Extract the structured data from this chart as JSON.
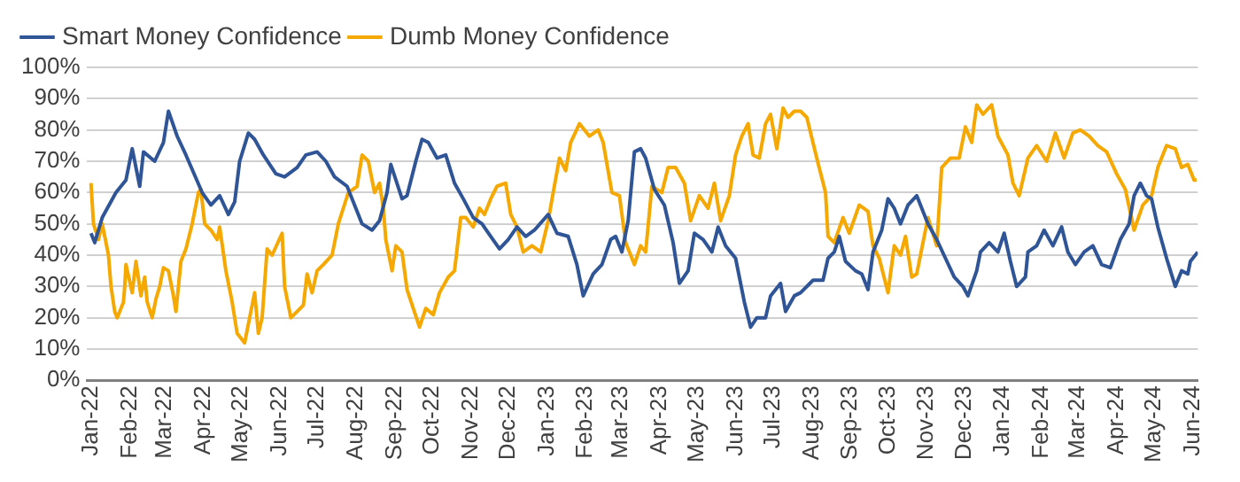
{
  "chart_data": {
    "type": "line",
    "xlim": [
      "2021-12-29",
      "2024-06-05"
    ],
    "ylim": [
      0,
      100
    ],
    "yticks": [
      {
        "value": 0,
        "label": "0%"
      },
      {
        "value": 10,
        "label": "10%"
      },
      {
        "value": 20,
        "label": "20%"
      },
      {
        "value": 30,
        "label": "30%"
      },
      {
        "value": 40,
        "label": "40%"
      },
      {
        "value": 50,
        "label": "50%"
      },
      {
        "value": 60,
        "label": "60%"
      },
      {
        "value": 70,
        "label": "70%"
      },
      {
        "value": 80,
        "label": "80%"
      },
      {
        "value": 90,
        "label": "90%"
      },
      {
        "value": 100,
        "label": "100%"
      }
    ],
    "xticks": [
      {
        "value": "2022-01",
        "label": "Jan-22"
      },
      {
        "value": "2022-02",
        "label": "Feb-22"
      },
      {
        "value": "2022-03",
        "label": "Mar-22"
      },
      {
        "value": "2022-04",
        "label": "Apr-22"
      },
      {
        "value": "2022-05",
        "label": "May-22"
      },
      {
        "value": "2022-06",
        "label": "Jun-22"
      },
      {
        "value": "2022-07",
        "label": "Jul-22"
      },
      {
        "value": "2022-08",
        "label": "Aug-22"
      },
      {
        "value": "2022-09",
        "label": "Sep-22"
      },
      {
        "value": "2022-10",
        "label": "Oct-22"
      },
      {
        "value": "2022-11",
        "label": "Nov-22"
      },
      {
        "value": "2022-12",
        "label": "Dec-22"
      },
      {
        "value": "2023-01",
        "label": "Jan-23"
      },
      {
        "value": "2023-02",
        "label": "Feb-23"
      },
      {
        "value": "2023-03",
        "label": "Mar-23"
      },
      {
        "value": "2023-04",
        "label": "Apr-23"
      },
      {
        "value": "2023-05",
        "label": "May-23"
      },
      {
        "value": "2023-06",
        "label": "Jun-23"
      },
      {
        "value": "2023-07",
        "label": "Jul-23"
      },
      {
        "value": "2023-08",
        "label": "Aug-23"
      },
      {
        "value": "2023-09",
        "label": "Sep-23"
      },
      {
        "value": "2023-10",
        "label": "Oct-23"
      },
      {
        "value": "2023-11",
        "label": "Nov-23"
      },
      {
        "value": "2023-12",
        "label": "Dec-23"
      },
      {
        "value": "2024-01",
        "label": "Jan-24"
      },
      {
        "value": "2024-02",
        "label": "Feb-24"
      },
      {
        "value": "2024-03",
        "label": "Mar-24"
      },
      {
        "value": "2024-04",
        "label": "Apr-24"
      },
      {
        "value": "2024-05",
        "label": "May-24"
      },
      {
        "value": "2024-06",
        "label": "Jun-24"
      }
    ],
    "grid": "y",
    "legend": "top left",
    "marker": "none",
    "line_style": "solid",
    "series": [
      {
        "name": "Smart Money Confidence",
        "color": "#2f5597",
        "x": [
          "2022-01-01",
          "2022-01-04",
          "2022-01-10",
          "2022-01-21",
          "2022-01-29",
          "2022-02-03",
          "2022-02-09",
          "2022-02-12",
          "2022-02-21",
          "2022-02-28",
          "2022-03-04",
          "2022-03-11",
          "2022-03-18",
          "2022-03-31",
          "2022-04-07",
          "2022-04-14",
          "2022-04-21",
          "2022-04-26",
          "2022-04-30",
          "2022-05-07",
          "2022-05-12",
          "2022-05-19",
          "2022-05-29",
          "2022-06-05",
          "2022-06-15",
          "2022-06-22",
          "2022-07-01",
          "2022-07-08",
          "2022-07-15",
          "2022-07-25",
          "2022-08-06",
          "2022-08-14",
          "2022-08-20",
          "2022-08-26",
          "2022-08-29",
          "2022-09-07",
          "2022-09-11",
          "2022-09-18",
          "2022-09-23",
          "2022-09-28",
          "2022-10-05",
          "2022-10-12",
          "2022-10-19",
          "2022-10-26",
          "2022-11-03",
          "2022-11-10",
          "2022-11-17",
          "2022-11-24",
          "2022-12-01",
          "2022-12-08",
          "2022-12-15",
          "2022-12-22",
          "2023-01-02",
          "2023-01-09",
          "2023-01-18",
          "2023-01-25",
          "2023-01-30",
          "2023-02-07",
          "2023-02-14",
          "2023-02-21",
          "2023-02-25",
          "2023-03-02",
          "2023-03-07",
          "2023-03-12",
          "2023-03-17",
          "2023-03-21",
          "2023-03-28",
          "2023-04-05",
          "2023-04-12",
          "2023-04-17",
          "2023-04-24",
          "2023-04-29",
          "2023-05-06",
          "2023-05-13",
          "2023-05-18",
          "2023-05-24",
          "2023-06-01",
          "2023-06-08",
          "2023-06-13",
          "2023-06-18",
          "2023-06-25",
          "2023-06-29",
          "2023-07-07",
          "2023-07-11",
          "2023-07-18",
          "2023-07-23",
          "2023-08-02",
          "2023-08-10",
          "2023-08-14",
          "2023-08-19",
          "2023-08-23",
          "2023-08-28",
          "2023-09-05",
          "2023-09-10",
          "2023-09-15",
          "2023-09-19",
          "2023-09-26",
          "2023-10-01",
          "2023-10-06",
          "2023-10-11",
          "2023-10-17",
          "2023-10-24",
          "2023-11-02",
          "2023-11-09",
          "2023-11-16",
          "2023-11-23",
          "2023-11-30",
          "2023-12-04",
          "2023-12-11",
          "2023-12-14",
          "2023-12-21",
          "2023-12-28",
          "2024-01-02",
          "2024-01-07",
          "2024-01-12",
          "2024-01-19",
          "2024-01-21",
          "2024-01-28",
          "2024-02-03",
          "2024-02-10",
          "2024-02-17",
          "2024-02-22",
          "2024-02-28",
          "2024-03-06",
          "2024-03-13",
          "2024-03-20",
          "2024-03-27",
          "2024-04-04",
          "2024-04-11",
          "2024-04-15",
          "2024-04-20",
          "2024-04-25",
          "2024-04-29",
          "2024-05-04",
          "2024-05-11",
          "2024-05-18",
          "2024-05-23",
          "2024-05-28",
          "2024-05-30",
          "2024-06-05"
        ],
        "values": [
          47,
          44,
          52,
          60,
          64,
          74,
          62,
          73,
          70,
          76,
          86,
          78,
          72,
          60,
          56,
          59,
          53,
          57,
          70,
          79,
          77,
          72,
          66,
          65,
          68,
          72,
          73,
          70,
          65,
          62,
          50,
          48,
          51,
          60,
          69,
          58,
          59,
          70,
          77,
          76,
          71,
          72,
          63,
          58,
          52,
          50,
          46,
          42,
          45,
          49,
          46,
          48,
          53,
          47,
          46,
          37,
          27,
          34,
          37,
          45,
          46,
          41,
          51,
          73,
          74,
          71,
          61,
          56,
          44,
          31,
          35,
          47,
          45,
          41,
          49,
          43,
          39,
          25,
          17,
          20,
          20,
          27,
          31,
          22,
          27,
          28,
          32,
          32,
          39,
          41,
          46,
          38,
          35,
          34,
          29,
          41,
          48,
          58,
          55,
          50,
          56,
          59,
          50,
          45,
          39,
          33,
          30,
          27,
          35,
          41,
          44,
          41,
          47,
          38,
          30,
          33,
          41,
          43,
          48,
          43,
          49,
          41,
          37,
          41,
          43,
          37,
          36,
          45,
          50,
          59,
          63,
          59,
          58,
          49,
          39,
          30,
          35,
          34,
          38,
          41
        ]
      },
      {
        "name": "Dumb Money Confidence",
        "color": "#f5a800",
        "x": [
          "2022-01-01",
          "2022-01-03",
          "2022-01-07",
          "2022-01-10",
          "2022-01-15",
          "2022-01-17",
          "2022-01-20",
          "2022-01-22",
          "2022-01-27",
          "2022-01-28",
          "2022-01-29",
          "2022-02-03",
          "2022-02-06",
          "2022-02-10",
          "2022-02-13",
          "2022-02-15",
          "2022-02-19",
          "2022-02-22",
          "2022-02-25",
          "2022-02-28",
          "2022-03-04",
          "2022-03-08",
          "2022-03-10",
          "2022-03-14",
          "2022-03-18",
          "2022-03-23",
          "2022-03-28",
          "2022-03-30",
          "2022-04-02",
          "2022-04-07",
          "2022-04-12",
          "2022-04-14",
          "2022-04-19",
          "2022-04-24",
          "2022-04-28",
          "2022-05-04",
          "2022-05-08",
          "2022-05-12",
          "2022-05-15",
          "2022-05-18",
          "2022-05-22",
          "2022-05-26",
          "2022-06-03",
          "2022-06-05",
          "2022-06-10",
          "2022-06-15",
          "2022-06-20",
          "2022-06-23",
          "2022-06-27",
          "2022-07-01",
          "2022-07-06",
          "2022-07-13",
          "2022-07-18",
          "2022-07-22",
          "2022-07-26",
          "2022-08-02",
          "2022-08-06",
          "2022-08-11",
          "2022-08-16",
          "2022-08-20",
          "2022-08-23",
          "2022-08-25",
          "2022-08-30",
          "2022-09-02",
          "2022-09-07",
          "2022-09-11",
          "2022-09-16",
          "2022-09-21",
          "2022-09-26",
          "2022-10-02",
          "2022-10-07",
          "2022-10-14",
          "2022-10-19",
          "2022-10-24",
          "2022-10-28",
          "2022-11-03",
          "2022-11-08",
          "2022-11-12",
          "2022-11-17",
          "2022-11-22",
          "2022-11-29",
          "2022-12-03",
          "2022-12-08",
          "2022-12-13",
          "2022-12-20",
          "2022-12-27",
          "2023-01-02",
          "2023-01-06",
          "2023-01-11",
          "2023-01-16",
          "2023-01-20",
          "2023-01-27",
          "2023-02-04",
          "2023-02-11",
          "2023-02-15",
          "2023-02-22",
          "2023-02-28",
          "2023-03-05",
          "2023-03-12",
          "2023-03-17",
          "2023-03-21",
          "2023-03-26",
          "2023-04-03",
          "2023-04-08",
          "2023-04-14",
          "2023-04-21",
          "2023-04-26",
          "2023-05-03",
          "2023-05-10",
          "2023-05-15",
          "2023-05-20",
          "2023-05-27",
          "2023-06-01",
          "2023-06-06",
          "2023-06-11",
          "2023-06-15",
          "2023-06-20",
          "2023-06-25",
          "2023-06-29",
          "2023-07-04",
          "2023-07-09",
          "2023-07-13",
          "2023-07-18",
          "2023-07-23",
          "2023-07-28",
          "2023-08-05",
          "2023-08-12",
          "2023-08-14",
          "2023-08-19",
          "2023-08-26",
          "2023-08-31",
          "2023-09-08",
          "2023-09-15",
          "2023-09-19",
          "2023-09-24",
          "2023-10-01",
          "2023-10-06",
          "2023-10-11",
          "2023-10-15",
          "2023-10-20",
          "2023-10-24",
          "2023-11-02",
          "2023-11-09",
          "2023-11-13",
          "2023-11-20",
          "2023-11-27",
          "2023-12-02",
          "2023-12-07",
          "2023-12-11",
          "2023-12-16",
          "2023-12-23",
          "2023-12-28",
          "2024-01-05",
          "2024-01-09",
          "2024-01-14",
          "2024-01-21",
          "2024-01-28",
          "2024-02-05",
          "2024-02-12",
          "2024-02-19",
          "2024-02-26",
          "2024-03-03",
          "2024-03-10",
          "2024-03-17",
          "2024-03-24",
          "2024-04-01",
          "2024-04-08",
          "2024-04-15",
          "2024-04-22",
          "2024-04-29",
          "2024-05-04",
          "2024-05-11",
          "2024-05-18",
          "2024-05-23",
          "2024-05-28",
          "2024-06-02",
          "2024-06-04"
        ],
        "values": [
          63,
          50,
          45,
          50,
          40,
          30,
          22,
          20,
          25,
          30,
          37,
          28,
          38,
          27,
          33,
          25,
          20,
          26,
          30,
          36,
          35,
          27,
          22,
          38,
          42,
          50,
          60,
          61,
          50,
          48,
          45,
          49,
          35,
          25,
          15,
          12,
          20,
          28,
          15,
          20,
          42,
          40,
          47,
          30,
          20,
          22,
          24,
          34,
          28,
          35,
          37,
          40,
          50,
          55,
          60,
          62,
          72,
          70,
          60,
          63,
          55,
          45,
          35,
          43,
          41,
          29,
          23,
          17,
          23,
          21,
          28,
          33,
          35,
          52,
          52,
          49,
          55,
          53,
          58,
          62,
          63,
          53,
          49,
          41,
          43,
          41,
          51,
          60,
          71,
          67,
          76,
          82,
          78,
          80,
          76,
          60,
          59,
          44,
          37,
          43,
          41,
          62,
          60,
          68,
          68,
          63,
          51,
          59,
          55,
          63,
          51,
          59,
          72,
          78,
          82,
          72,
          71,
          82,
          85,
          74,
          87,
          84,
          86,
          86,
          84,
          71,
          60,
          46,
          44,
          52,
          47,
          56,
          54,
          43,
          39,
          28,
          43,
          40,
          46,
          33,
          34,
          52,
          43,
          68,
          71,
          71,
          81,
          76,
          88,
          85,
          88,
          78,
          72,
          63,
          59,
          71,
          75,
          70,
          79,
          71,
          79,
          80,
          78,
          75,
          73,
          66,
          61,
          48,
          56,
          59,
          68,
          75,
          74,
          68,
          69,
          64,
          64
        ]
      }
    ]
  }
}
